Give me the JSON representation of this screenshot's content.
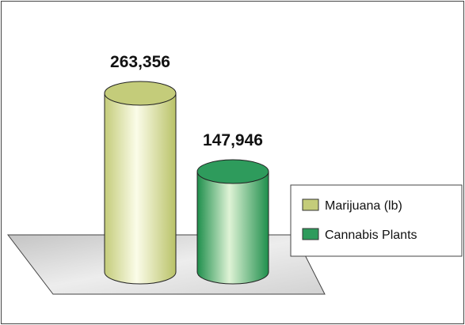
{
  "chart_data": {
    "type": "bar",
    "style": "3d-cylinder",
    "categories": [
      "Marijuana (lb)",
      "Cannabis Plants"
    ],
    "series": [
      {
        "name": "Marijuana (lb)",
        "values": [
          263356,
          null
        ]
      },
      {
        "name": "Cannabis Plants",
        "values": [
          null,
          147946
        ]
      }
    ],
    "values": [
      263356,
      147946
    ],
    "data_labels": [
      "263,356",
      "147,946"
    ],
    "title": "",
    "xlabel": "",
    "ylabel": "",
    "ylim": [
      0,
      300000
    ],
    "grid": false,
    "legend_position": "right",
    "colors": {
      "Marijuana (lb)": "#c4cc7a",
      "Cannabis Plants": "#2e9b5c"
    }
  },
  "legend": {
    "items": [
      {
        "label": "Marijuana (lb)",
        "color": "#c4cc7a"
      },
      {
        "label": "Cannabis Plants",
        "color": "#2e9b5c"
      }
    ]
  }
}
